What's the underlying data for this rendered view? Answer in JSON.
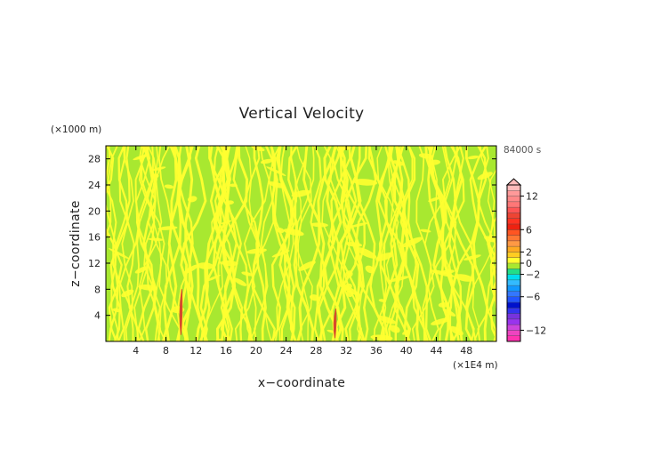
{
  "chart_data": {
    "type": "heatmap",
    "title": "Vertical Velocity",
    "xlabel": "x−coordinate",
    "ylabel": "z−coordinate",
    "x_unit": "(×1E4 m)",
    "y_unit": "(×1000 m)",
    "time_label": "84000 s",
    "xlim": [
      0,
      52
    ],
    "ylim": [
      0,
      30
    ],
    "x_ticks": [
      "4",
      "8",
      "12",
      "16",
      "20",
      "24",
      "28",
      "32",
      "36",
      "40",
      "44",
      "48"
    ],
    "x_tick_values": [
      4,
      8,
      12,
      16,
      20,
      24,
      28,
      32,
      36,
      40,
      44,
      48
    ],
    "y_ticks": [
      "4",
      "8",
      "12",
      "16",
      "20",
      "24",
      "28"
    ],
    "y_tick_values": [
      4,
      8,
      12,
      16,
      20,
      24,
      28
    ],
    "field_colors": {
      "positive_small": "#ffff30",
      "negative_small": "#a8e830"
    },
    "features": [
      {
        "x": 10,
        "z_range": [
          1,
          8
        ],
        "max_value": 8,
        "color": "#d84a2a"
      },
      {
        "x": 30.5,
        "z_range": [
          0.5,
          5
        ],
        "max_value": 6,
        "color": "#d84a2a"
      }
    ],
    "colorbar": {
      "range": [
        -14,
        14
      ],
      "levels": [
        {
          "from": -14,
          "to": -13,
          "color": "#ff33b0"
        },
        {
          "from": -13,
          "to": -12,
          "color": "#ee44c0"
        },
        {
          "from": -12,
          "to": -11,
          "color": "#cc44dd"
        },
        {
          "from": -11,
          "to": -10,
          "color": "#9933ee"
        },
        {
          "from": -10,
          "to": -9,
          "color": "#7733dd"
        },
        {
          "from": -9,
          "to": -8,
          "color": "#3333ee"
        },
        {
          "from": -8,
          "to": -7,
          "color": "#0011cc"
        },
        {
          "from": -7,
          "to": -6,
          "color": "#2255ff"
        },
        {
          "from": -6,
          "to": -5,
          "color": "#3377ff"
        },
        {
          "from": -5,
          "to": -4,
          "color": "#1199ff"
        },
        {
          "from": -4,
          "to": -3,
          "color": "#33bbff"
        },
        {
          "from": -3,
          "to": -2,
          "color": "#00ddee"
        },
        {
          "from": -2,
          "to": -1,
          "color": "#22dd88"
        },
        {
          "from": -1,
          "to": 0,
          "color": "#a8e830"
        },
        {
          "from": 0,
          "to": 1,
          "color": "#ffff30"
        },
        {
          "from": 1,
          "to": 2,
          "color": "#ffcc22"
        },
        {
          "from": 2,
          "to": 3,
          "color": "#ffaa22"
        },
        {
          "from": 3,
          "to": 4,
          "color": "#ff9944"
        },
        {
          "from": 4,
          "to": 5,
          "color": "#ff7733"
        },
        {
          "from": 5,
          "to": 6,
          "color": "#ff5522"
        },
        {
          "from": 6,
          "to": 7,
          "color": "#ee2211"
        },
        {
          "from": 7,
          "to": 8,
          "color": "#ff3322"
        },
        {
          "from": 8,
          "to": 9,
          "color": "#ee4433"
        },
        {
          "from": 9,
          "to": 10,
          "color": "#ff5555"
        },
        {
          "from": 10,
          "to": 11,
          "color": "#ff7777"
        },
        {
          "from": 11,
          "to": 12,
          "color": "#ff8888"
        },
        {
          "from": 12,
          "to": 13,
          "color": "#ff9999"
        },
        {
          "from": 13,
          "to": 14,
          "color": "#ffbbbb"
        }
      ],
      "tick_labels": [
        "12",
        "6",
        "2",
        "0",
        "−2",
        "−6",
        "−12"
      ],
      "tick_values": [
        12,
        6,
        2,
        0,
        -2,
        -6,
        -12
      ],
      "extend_top": true
    }
  }
}
